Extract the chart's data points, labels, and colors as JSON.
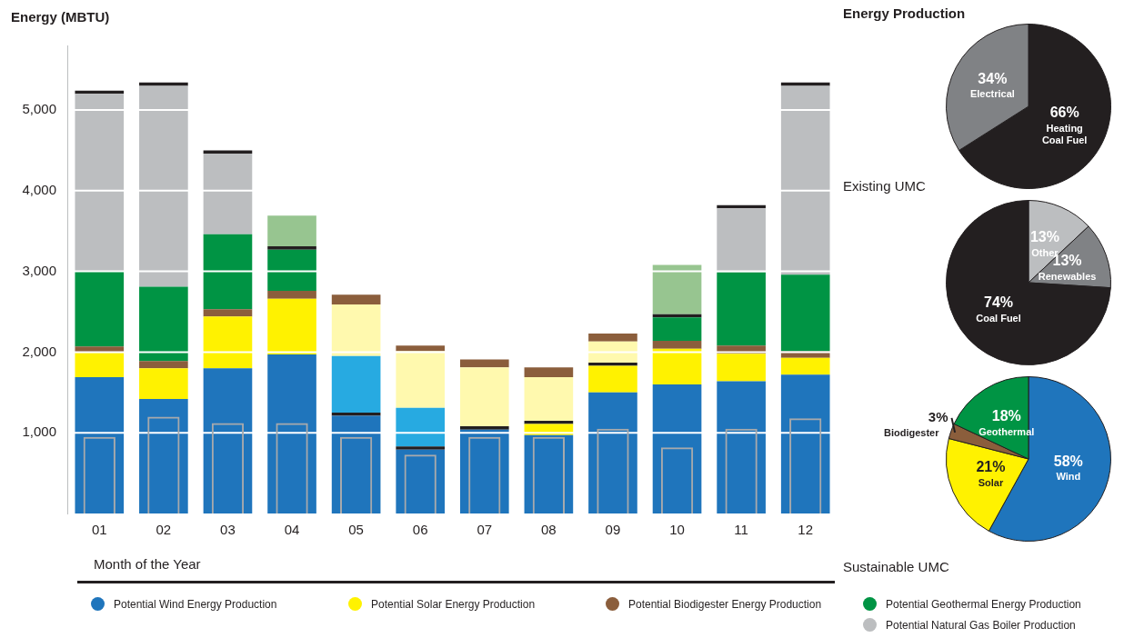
{
  "chart_data": [
    {
      "type": "bar",
      "ylabel": "Energy (MBTU)",
      "xlabel": "Month of the Year",
      "categories": [
        "01",
        "02",
        "03",
        "04",
        "05",
        "06",
        "07",
        "08",
        "09",
        "10",
        "11",
        "12"
      ],
      "stacked": true,
      "ylim": [
        0,
        5800
      ],
      "yticks": [
        {
          "value": 1000,
          "label": "1,000"
        },
        {
          "value": 2000,
          "label": "2,000"
        },
        {
          "value": 3000,
          "label": "3,000"
        },
        {
          "value": 4000,
          "label": "4,000"
        },
        {
          "value": 5000,
          "label": "5,000"
        }
      ],
      "grid": "y",
      "legend": "bottom",
      "series": [
        {
          "name": "Potential Wind Energy Production",
          "color": "#1f75bc",
          "values": [
            1690,
            1420,
            1800,
            1970,
            1210,
            790,
            1040,
            970,
            1500,
            1600,
            1640,
            1720
          ]
        },
        {
          "color": "#231f20",
          "values": [
            null,
            null,
            null,
            null,
            40,
            40,
            40,
            null,
            null,
            null,
            null,
            null
          ]
        },
        {
          "color": "#27aae1",
          "values": [
            null,
            null,
            null,
            null,
            700,
            480,
            null,
            null,
            null,
            null,
            null,
            null
          ]
        },
        {
          "name": "Potential Solar Energy Production",
          "color": "#fff200",
          "values": [
            300,
            380,
            640,
            690,
            null,
            null,
            null,
            140,
            330,
            440,
            340,
            210
          ]
        },
        {
          "color": "#231f20",
          "values": [
            null,
            null,
            null,
            null,
            null,
            null,
            null,
            40,
            40,
            null,
            null,
            null
          ]
        },
        {
          "color": "#fff9ae",
          "values": [
            null,
            null,
            null,
            null,
            640,
            700,
            730,
            540,
            260,
            null,
            null,
            null
          ]
        },
        {
          "name": "Potential Biodigester Energy Production",
          "color": "#8b5e3c",
          "values": [
            80,
            90,
            90,
            100,
            120,
            70,
            100,
            120,
            100,
            100,
            100,
            80
          ]
        },
        {
          "name": "Potential Geothermal Energy Production",
          "color": "#009444",
          "values": [
            930,
            920,
            930,
            510,
            null,
            null,
            null,
            null,
            null,
            290,
            910,
            950
          ]
        },
        {
          "color": "#231f20",
          "values": [
            null,
            null,
            null,
            40,
            null,
            null,
            null,
            null,
            null,
            40,
            null,
            null
          ]
        },
        {
          "color": "#97c590",
          "values": [
            null,
            null,
            null,
            380,
            null,
            null,
            null,
            null,
            null,
            610,
            null,
            null
          ]
        },
        {
          "name": "Potential Natural Gas Boiler Production",
          "color": "#bcbec0",
          "values": [
            2200,
            2490,
            1000,
            null,
            null,
            null,
            null,
            null,
            null,
            null,
            790,
            2340
          ]
        },
        {
          "color": "#231f20",
          "values": [
            40,
            40,
            40,
            null,
            null,
            null,
            null,
            null,
            null,
            null,
            40,
            40
          ]
        }
      ]
    },
    {
      "type": "bar",
      "categories": [
        null,
        null,
        null,
        null,
        null,
        null,
        null,
        null,
        null,
        null,
        null,
        null
      ],
      "ylim": [
        0,
        5800
      ],
      "series": [
        {
          "color": "#a7a9ac",
          "values": [
            950,
            1200,
            1120,
            1120,
            950,
            730,
            950,
            950,
            1050,
            820,
            1050,
            1180
          ]
        }
      ]
    },
    {
      "type": "pie",
      "title": "Energy Production",
      "xlabel": "Existing UMC",
      "categories": [
        "Heating Coal Fuel",
        "Electrical"
      ],
      "values": [
        66,
        34
      ],
      "colors": [
        "#231f20",
        "#808285"
      ],
      "value_labels": [
        "66%",
        "34%"
      ]
    },
    {
      "type": "pie",
      "categories": [
        "Other",
        "Renewables",
        "Coal Fuel"
      ],
      "values": [
        13,
        13,
        74
      ],
      "colors": [
        "#bcbec0",
        "#808285",
        "#231f20"
      ],
      "value_labels": [
        "13%",
        "13%",
        "74%"
      ]
    },
    {
      "type": "pie",
      "xlabel": "Sustainable UMC",
      "categories": [
        "Wind",
        "Solar",
        "Biodigester",
        "Geothermal"
      ],
      "values": [
        58,
        21,
        3,
        18
      ],
      "colors": [
        "#1f75bc",
        "#fff200",
        "#8b5e3c",
        "#009444"
      ],
      "value_labels": [
        "58%",
        "21%",
        "3%",
        "18%"
      ]
    }
  ]
}
